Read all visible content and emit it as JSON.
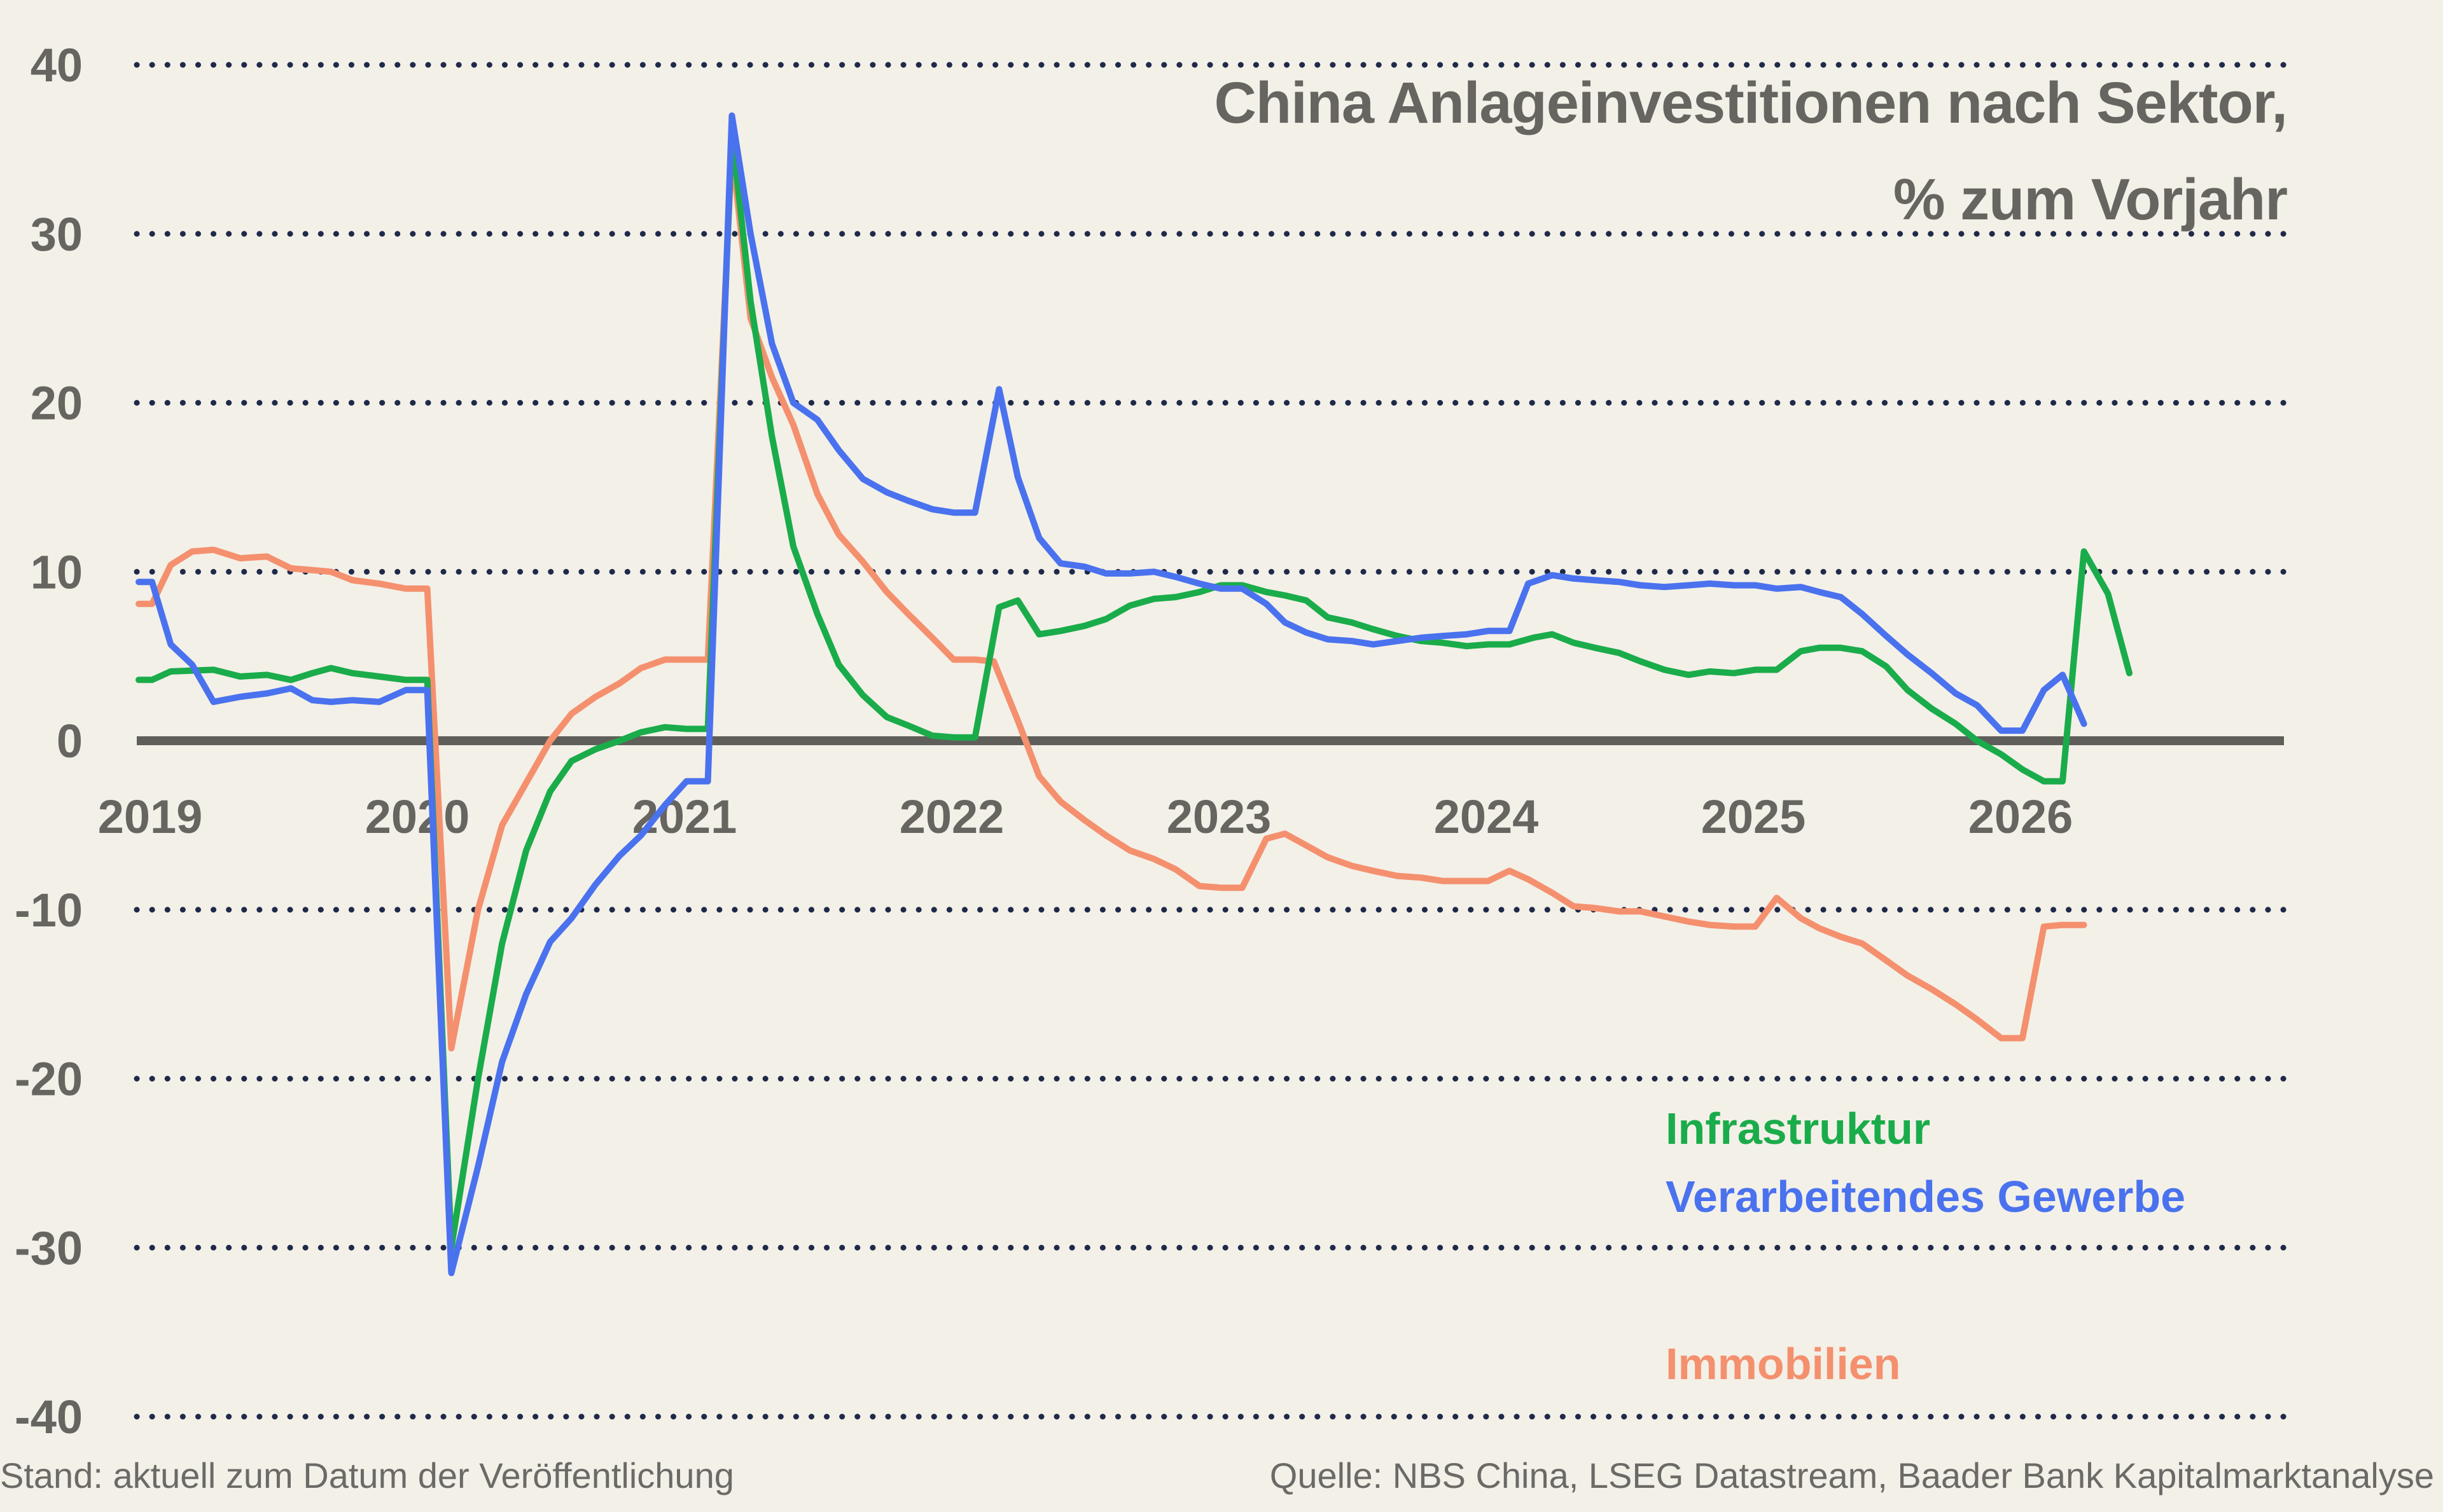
{
  "title_line1": "China Anlageinvestitionen nach Sektor,",
  "title_line2": "% zum Vorjahr",
  "footer_left": "Stand: aktuell zum Datum der Veröffentlichung",
  "footer_right": "Quelle: NBS China, LSEG Datastream, Baader Bank Kapitalmarktanalyse",
  "chart_data": {
    "type": "line",
    "title": "China Anlageinvestitionen nach Sektor, % zum Vorjahr",
    "xlabel": "",
    "ylabel": "",
    "ylim": [
      -40,
      40
    ],
    "yticks": [
      40,
      30,
      20,
      10,
      0,
      -10,
      -20,
      -30,
      -40
    ],
    "ytick_labels": [
      "40",
      "30",
      "20",
      "10",
      "0",
      "-10",
      "-20",
      "-30",
      "-40"
    ],
    "xlim": [
      2019.0,
      2027.0
    ],
    "xticks": [
      2019,
      2020,
      2021,
      2022,
      2023,
      2024,
      2025,
      2026
    ],
    "xtick_labels": [
      "2019",
      "2020",
      "2021",
      "2022",
      "2023",
      "2024",
      "2025",
      "2026"
    ],
    "grid": "dotted horizontal",
    "legend": "lower-right, inline labels",
    "colors": {
      "background": "#f3f0e8",
      "grid": "#1f2a4a",
      "zero_line": "#5f5e5a",
      "text": "#666560",
      "infrastruktur": "#1aac4a",
      "verarbeitendes_gewerbe": "#4a72ee",
      "immobilien": "#f4906e"
    },
    "series": [
      {
        "name": "Infrastruktur",
        "color": "#1aac4a",
        "points": [
          [
            2019.0,
            3.6
          ],
          [
            2019.05,
            3.6
          ],
          [
            2019.12,
            4.1
          ],
          [
            2019.28,
            4.2
          ],
          [
            2019.38,
            3.8
          ],
          [
            2019.48,
            3.9
          ],
          [
            2019.57,
            3.6
          ],
          [
            2019.65,
            4.0
          ],
          [
            2019.72,
            4.3
          ],
          [
            2019.8,
            4.0
          ],
          [
            2019.9,
            3.8
          ],
          [
            2020.0,
            3.6
          ],
          [
            2020.08,
            3.6
          ],
          [
            2020.17,
            -30.0
          ],
          [
            2020.27,
            -20.0
          ],
          [
            2020.36,
            -12.0
          ],
          [
            2020.45,
            -6.5
          ],
          [
            2020.54,
            -3.0
          ],
          [
            2020.62,
            -1.2
          ],
          [
            2020.71,
            -0.5
          ],
          [
            2020.8,
            0.0
          ],
          [
            2020.88,
            0.5
          ],
          [
            2020.97,
            0.8
          ],
          [
            2021.05,
            0.7
          ],
          [
            2021.13,
            0.7
          ],
          [
            2021.22,
            36.0
          ],
          [
            2021.29,
            26.0
          ],
          [
            2021.37,
            18.0
          ],
          [
            2021.45,
            11.5
          ],
          [
            2021.54,
            7.5
          ],
          [
            2021.62,
            4.5
          ],
          [
            2021.71,
            2.7
          ],
          [
            2021.8,
            1.4
          ],
          [
            2021.88,
            0.9
          ],
          [
            2021.97,
            0.3
          ],
          [
            2022.05,
            0.2
          ],
          [
            2022.13,
            0.2
          ],
          [
            2022.22,
            7.9
          ],
          [
            2022.29,
            8.3
          ],
          [
            2022.37,
            6.3
          ],
          [
            2022.45,
            6.5
          ],
          [
            2022.54,
            6.8
          ],
          [
            2022.62,
            7.2
          ],
          [
            2022.71,
            8.0
          ],
          [
            2022.8,
            8.4
          ],
          [
            2022.88,
            8.5
          ],
          [
            2022.97,
            8.8
          ],
          [
            2023.05,
            9.2
          ],
          [
            2023.13,
            9.2
          ],
          [
            2023.22,
            8.8
          ],
          [
            2023.29,
            8.6
          ],
          [
            2023.37,
            8.3
          ],
          [
            2023.45,
            7.3
          ],
          [
            2023.54,
            7.0
          ],
          [
            2023.62,
            6.6
          ],
          [
            2023.71,
            6.2
          ],
          [
            2023.8,
            5.9
          ],
          [
            2023.88,
            5.8
          ],
          [
            2023.97,
            5.6
          ],
          [
            2024.05,
            5.7
          ],
          [
            2024.13,
            5.7
          ],
          [
            2024.22,
            6.1
          ],
          [
            2024.29,
            6.3
          ],
          [
            2024.37,
            5.8
          ],
          [
            2024.45,
            5.5
          ],
          [
            2024.54,
            5.2
          ],
          [
            2024.62,
            4.7
          ],
          [
            2024.71,
            4.2
          ],
          [
            2024.8,
            3.9
          ],
          [
            2024.88,
            4.1
          ],
          [
            2024.97,
            4.0
          ],
          [
            2025.05,
            4.2
          ],
          [
            2025.13,
            4.2
          ],
          [
            2025.22,
            5.3
          ],
          [
            2025.29,
            5.5
          ],
          [
            2025.37,
            5.5
          ],
          [
            2025.45,
            5.3
          ],
          [
            2025.54,
            4.4
          ],
          [
            2025.62,
            3.0
          ],
          [
            2025.71,
            1.9
          ],
          [
            2025.8,
            1.0
          ],
          [
            2025.88,
            0.0
          ],
          [
            2025.97,
            -0.8
          ],
          [
            2026.05,
            -1.7
          ],
          [
            2026.13,
            -2.4
          ],
          [
            2026.2,
            -2.4
          ],
          [
            2026.28,
            11.2
          ],
          [
            2026.37,
            8.7
          ],
          [
            2026.45,
            4.0
          ]
        ]
      },
      {
        "name": "Verarbeitendes Gewerbe",
        "color": "#4a72ee",
        "points": [
          [
            2019.0,
            9.4
          ],
          [
            2019.05,
            9.4
          ],
          [
            2019.12,
            5.7
          ],
          [
            2019.2,
            4.5
          ],
          [
            2019.28,
            2.3
          ],
          [
            2019.38,
            2.6
          ],
          [
            2019.48,
            2.8
          ],
          [
            2019.57,
            3.1
          ],
          [
            2019.65,
            2.4
          ],
          [
            2019.72,
            2.3
          ],
          [
            2019.8,
            2.4
          ],
          [
            2019.9,
            2.3
          ],
          [
            2020.0,
            3.0
          ],
          [
            2020.08,
            3.0
          ],
          [
            2020.17,
            -31.5
          ],
          [
            2020.27,
            -25.2
          ],
          [
            2020.36,
            -19.0
          ],
          [
            2020.45,
            -15.0
          ],
          [
            2020.54,
            -11.9
          ],
          [
            2020.62,
            -10.5
          ],
          [
            2020.71,
            -8.5
          ],
          [
            2020.8,
            -6.8
          ],
          [
            2020.88,
            -5.6
          ],
          [
            2020.97,
            -3.8
          ],
          [
            2021.05,
            -2.4
          ],
          [
            2021.13,
            -2.4
          ],
          [
            2021.22,
            37.0
          ],
          [
            2021.29,
            30.0
          ],
          [
            2021.37,
            23.5
          ],
          [
            2021.45,
            20.0
          ],
          [
            2021.54,
            19.0
          ],
          [
            2021.62,
            17.2
          ],
          [
            2021.71,
            15.5
          ],
          [
            2021.8,
            14.7
          ],
          [
            2021.88,
            14.2
          ],
          [
            2021.97,
            13.7
          ],
          [
            2022.05,
            13.5
          ],
          [
            2022.13,
            13.5
          ],
          [
            2022.22,
            20.8
          ],
          [
            2022.29,
            15.6
          ],
          [
            2022.37,
            12.0
          ],
          [
            2022.45,
            10.5
          ],
          [
            2022.54,
            10.3
          ],
          [
            2022.62,
            9.9
          ],
          [
            2022.71,
            9.9
          ],
          [
            2022.8,
            10.0
          ],
          [
            2022.88,
            9.7
          ],
          [
            2022.97,
            9.3
          ],
          [
            2023.05,
            9.0
          ],
          [
            2023.13,
            9.0
          ],
          [
            2023.22,
            8.1
          ],
          [
            2023.29,
            7.0
          ],
          [
            2023.37,
            6.4
          ],
          [
            2023.45,
            6.0
          ],
          [
            2023.54,
            5.9
          ],
          [
            2023.62,
            5.7
          ],
          [
            2023.71,
            5.9
          ],
          [
            2023.8,
            6.1
          ],
          [
            2023.88,
            6.2
          ],
          [
            2023.97,
            6.3
          ],
          [
            2024.05,
            6.5
          ],
          [
            2024.13,
            6.5
          ],
          [
            2024.2,
            9.3
          ],
          [
            2024.29,
            9.8
          ],
          [
            2024.37,
            9.6
          ],
          [
            2024.45,
            9.5
          ],
          [
            2024.54,
            9.4
          ],
          [
            2024.62,
            9.2
          ],
          [
            2024.71,
            9.1
          ],
          [
            2024.8,
            9.2
          ],
          [
            2024.88,
            9.3
          ],
          [
            2024.97,
            9.2
          ],
          [
            2025.05,
            9.2
          ],
          [
            2025.13,
            9.0
          ],
          [
            2025.22,
            9.1
          ],
          [
            2025.29,
            8.8
          ],
          [
            2025.37,
            8.5
          ],
          [
            2025.45,
            7.5
          ],
          [
            2025.54,
            6.2
          ],
          [
            2025.62,
            5.1
          ],
          [
            2025.71,
            4.0
          ],
          [
            2025.8,
            2.8
          ],
          [
            2025.88,
            2.1
          ],
          [
            2025.97,
            0.6
          ],
          [
            2026.05,
            0.6
          ],
          [
            2026.13,
            3.0
          ],
          [
            2026.2,
            3.9
          ],
          [
            2026.28,
            1.0
          ]
        ]
      },
      {
        "name": "Immobilien",
        "color": "#f4906e",
        "points": [
          [
            2019.0,
            8.1
          ],
          [
            2019.05,
            8.1
          ],
          [
            2019.12,
            10.4
          ],
          [
            2019.2,
            11.2
          ],
          [
            2019.28,
            11.3
          ],
          [
            2019.38,
            10.8
          ],
          [
            2019.48,
            10.9
          ],
          [
            2019.57,
            10.2
          ],
          [
            2019.65,
            10.1
          ],
          [
            2019.72,
            10.0
          ],
          [
            2019.8,
            9.5
          ],
          [
            2019.9,
            9.3
          ],
          [
            2020.0,
            9.0
          ],
          [
            2020.08,
            9.0
          ],
          [
            2020.17,
            -18.2
          ],
          [
            2020.27,
            -10.0
          ],
          [
            2020.36,
            -5.0
          ],
          [
            2020.45,
            -2.5
          ],
          [
            2020.54,
            0.0
          ],
          [
            2020.62,
            1.6
          ],
          [
            2020.71,
            2.6
          ],
          [
            2020.8,
            3.4
          ],
          [
            2020.88,
            4.3
          ],
          [
            2020.97,
            4.8
          ],
          [
            2021.05,
            4.8
          ],
          [
            2021.13,
            4.8
          ],
          [
            2021.22,
            35.0
          ],
          [
            2021.29,
            25.0
          ],
          [
            2021.37,
            21.5
          ],
          [
            2021.45,
            18.7
          ],
          [
            2021.54,
            14.6
          ],
          [
            2021.62,
            12.2
          ],
          [
            2021.71,
            10.6
          ],
          [
            2021.8,
            8.8
          ],
          [
            2021.88,
            7.5
          ],
          [
            2021.97,
            6.1
          ],
          [
            2022.05,
            4.8
          ],
          [
            2022.13,
            4.8
          ],
          [
            2022.2,
            4.7
          ],
          [
            2022.29,
            1.2
          ],
          [
            2022.37,
            -2.1
          ],
          [
            2022.45,
            -3.6
          ],
          [
            2022.54,
            -4.7
          ],
          [
            2022.62,
            -5.6
          ],
          [
            2022.71,
            -6.5
          ],
          [
            2022.8,
            -7.0
          ],
          [
            2022.88,
            -7.6
          ],
          [
            2022.97,
            -8.6
          ],
          [
            2023.05,
            -8.7
          ],
          [
            2023.13,
            -8.7
          ],
          [
            2023.22,
            -5.8
          ],
          [
            2023.29,
            -5.5
          ],
          [
            2023.37,
            -6.2
          ],
          [
            2023.45,
            -6.9
          ],
          [
            2023.54,
            -7.4
          ],
          [
            2023.62,
            -7.7
          ],
          [
            2023.71,
            -8.0
          ],
          [
            2023.8,
            -8.1
          ],
          [
            2023.88,
            -8.3
          ],
          [
            2023.97,
            -8.3
          ],
          [
            2024.05,
            -8.3
          ],
          [
            2024.13,
            -7.7
          ],
          [
            2024.2,
            -8.2
          ],
          [
            2024.29,
            -9.0
          ],
          [
            2024.37,
            -9.8
          ],
          [
            2024.45,
            -9.9
          ],
          [
            2024.54,
            -10.1
          ],
          [
            2024.62,
            -10.1
          ],
          [
            2024.71,
            -10.4
          ],
          [
            2024.8,
            -10.7
          ],
          [
            2024.88,
            -10.9
          ],
          [
            2024.97,
            -11.0
          ],
          [
            2025.05,
            -11.0
          ],
          [
            2025.13,
            -9.3
          ],
          [
            2025.22,
            -10.5
          ],
          [
            2025.29,
            -11.1
          ],
          [
            2025.37,
            -11.6
          ],
          [
            2025.45,
            -12.0
          ],
          [
            2025.54,
            -13.0
          ],
          [
            2025.62,
            -13.9
          ],
          [
            2025.71,
            -14.7
          ],
          [
            2025.8,
            -15.6
          ],
          [
            2025.88,
            -16.5
          ],
          [
            2025.97,
            -17.6
          ],
          [
            2026.05,
            -17.6
          ],
          [
            2026.13,
            -11.0
          ],
          [
            2026.2,
            -10.9
          ],
          [
            2026.28,
            -10.9
          ]
        ]
      }
    ]
  }
}
